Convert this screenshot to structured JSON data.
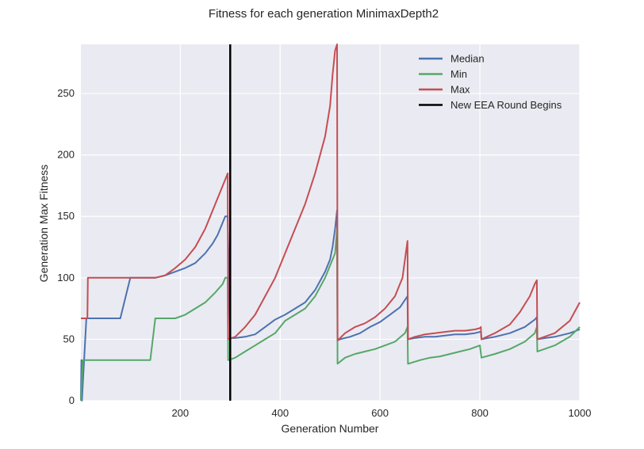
{
  "chart_data": {
    "type": "line",
    "title": "Fitness for each generation MinimaxDepth2",
    "xlabel": "Generation Number",
    "ylabel": "Generation Max Fitness",
    "xlim": [
      1,
      1000
    ],
    "ylim": [
      0,
      290
    ],
    "xticks": [
      200,
      400,
      600,
      800,
      1000
    ],
    "xtick_labels": [
      "200",
      "400",
      "600",
      "800",
      "1000"
    ],
    "yticks": [
      0,
      50,
      100,
      150,
      200,
      250
    ],
    "ytick_labels": [
      "0",
      "50",
      "100",
      "150",
      "200",
      "250"
    ],
    "grid": true,
    "background": "#eaeaf2",
    "legend_position": "top-right",
    "series": [
      {
        "name": "Median",
        "color": "#4c72b0",
        "x": [
          1,
          2,
          3,
          12,
          20,
          40,
          60,
          80,
          100,
          130,
          150,
          170,
          190,
          210,
          230,
          250,
          265,
          275,
          285,
          290,
          295,
          300,
          310,
          330,
          350,
          370,
          390,
          410,
          430,
          450,
          470,
          490,
          500,
          505,
          510,
          514,
          515,
          520,
          540,
          560,
          580,
          600,
          620,
          640,
          650,
          655,
          656,
          670,
          690,
          710,
          730,
          750,
          770,
          790,
          800,
          802,
          803,
          830,
          860,
          890,
          910,
          914,
          915,
          950,
          980,
          1000
        ],
        "y": [
          0,
          33,
          0,
          67,
          67,
          67,
          67,
          67,
          100,
          100,
          100,
          102,
          105,
          108,
          112,
          120,
          128,
          135,
          145,
          150,
          150,
          51,
          51,
          52,
          54,
          60,
          66,
          70,
          75,
          80,
          90,
          105,
          115,
          125,
          140,
          155,
          49,
          50,
          52,
          55,
          60,
          64,
          70,
          76,
          82,
          85,
          50,
          51,
          52,
          52,
          53,
          54,
          54,
          55,
          56,
          56,
          50,
          52,
          55,
          60,
          66,
          68,
          50,
          52,
          55,
          58
        ]
      },
      {
        "name": "Min",
        "color": "#55a868",
        "x": [
          1,
          5,
          20,
          40,
          60,
          80,
          100,
          120,
          140,
          150,
          170,
          190,
          210,
          230,
          250,
          270,
          285,
          290,
          295,
          296,
          310,
          330,
          350,
          370,
          390,
          410,
          430,
          450,
          470,
          490,
          510,
          514,
          515,
          530,
          550,
          570,
          590,
          610,
          630,
          650,
          655,
          656,
          680,
          700,
          720,
          740,
          760,
          780,
          800,
          803,
          830,
          860,
          890,
          910,
          914,
          915,
          950,
          980,
          1000
        ],
        "y": [
          0,
          33,
          33,
          33,
          33,
          33,
          33,
          33,
          33,
          67,
          67,
          67,
          70,
          75,
          80,
          88,
          95,
          100,
          100,
          33,
          35,
          40,
          45,
          50,
          55,
          65,
          70,
          75,
          85,
          100,
          120,
          140,
          30,
          35,
          38,
          40,
          42,
          45,
          48,
          55,
          60,
          30,
          33,
          35,
          36,
          38,
          40,
          42,
          45,
          35,
          38,
          42,
          48,
          55,
          60,
          40,
          45,
          52,
          60
        ]
      },
      {
        "name": "Max",
        "color": "#c44e52",
        "x": [
          1,
          10,
          14,
          15,
          40,
          80,
          120,
          150,
          170,
          190,
          210,
          230,
          250,
          260,
          270,
          280,
          290,
          295,
          296,
          310,
          330,
          350,
          370,
          390,
          410,
          430,
          450,
          470,
          490,
          500,
          505,
          510,
          514,
          515,
          530,
          550,
          570,
          590,
          610,
          630,
          645,
          650,
          655,
          656,
          670,
          690,
          710,
          730,
          750,
          770,
          790,
          800,
          802,
          803,
          830,
          860,
          880,
          900,
          910,
          914,
          915,
          950,
          980,
          1000
        ],
        "y": [
          67,
          67,
          67,
          100,
          100,
          100,
          100,
          100,
          102,
          108,
          115,
          125,
          140,
          150,
          160,
          170,
          180,
          185,
          50,
          52,
          60,
          70,
          85,
          100,
          120,
          140,
          160,
          185,
          215,
          240,
          265,
          285,
          290,
          49,
          55,
          60,
          63,
          68,
          75,
          85,
          100,
          115,
          130,
          50,
          52,
          54,
          55,
          56,
          57,
          57,
          58,
          59,
          60,
          50,
          55,
          62,
          72,
          85,
          95,
          98,
          50,
          55,
          65,
          80
        ]
      },
      {
        "name": "New EEA Round Begins",
        "color": "#000000",
        "type": "vline",
        "x": 300
      }
    ]
  }
}
